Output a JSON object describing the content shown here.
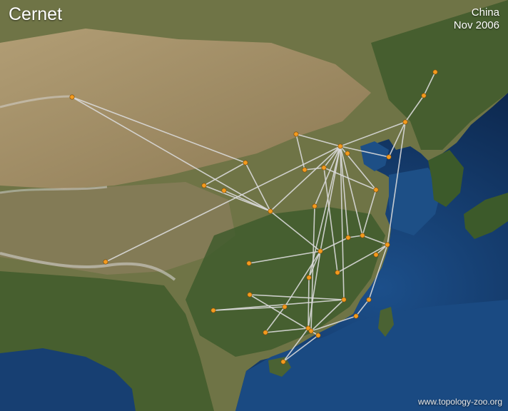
{
  "map": {
    "title": "Cernet",
    "region": "China",
    "date": "Nov 2006",
    "credit": "www.topology-zoo.org",
    "link_color": "#d9d9d9",
    "node_color": "#f39a1e"
  },
  "network": {
    "node_count": 36
  }
}
